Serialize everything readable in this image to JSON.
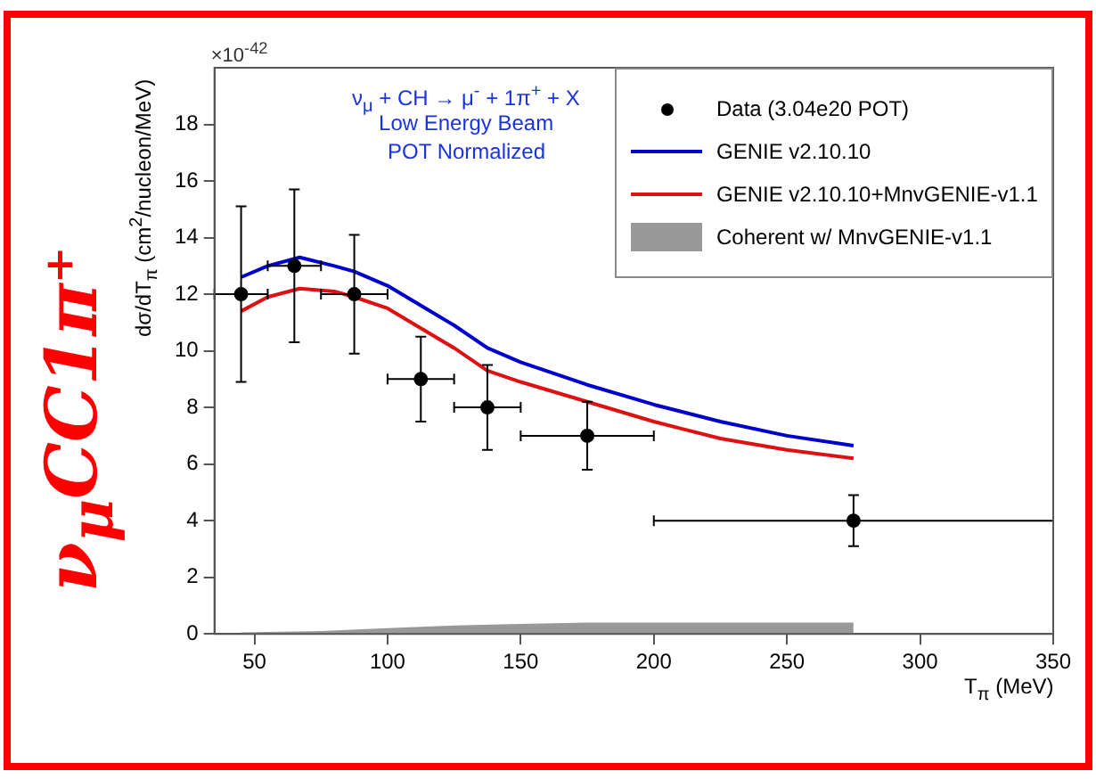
{
  "chart_data": {
    "type": "line",
    "title": "ν$_{μ}$CC1π⁺",
    "xlabel": "T$_{π}$ (MeV)",
    "ylabel": "dσ/dT$_{π}$ (cm$^{2}$/nucleon/MeV)",
    "annotations": [
      "×10$^{-42}$",
      "ν$_{μ}$ + CH → μ$^{-}$ + 1π$^{+}$ + X",
      "Low Energy Beam",
      "POT Normalized"
    ],
    "series": [
      {
        "name": "Data (3.04e20 POT)",
        "type": "scatter",
        "color": "#000000",
        "marker": "circle",
        "x": [
          45,
          65,
          87.5,
          112.5,
          137.5,
          175,
          275
        ],
        "values": [
          12,
          13,
          12,
          9,
          8,
          7,
          4
        ],
        "errors": [
          3.1,
          2.7,
          2.1,
          1.5,
          1.5,
          1.2,
          0.9
        ],
        "xerrors": [
          10,
          10,
          12.5,
          12.5,
          12.5,
          25,
          75
        ]
      },
      {
        "name": "GENIE v2.10.10",
        "type": "line",
        "color": "#0000cc",
        "x": [
          45,
          55,
          67,
          80,
          87.5,
          100,
          112.5,
          125,
          137.5,
          150,
          175,
          200,
          225,
          250,
          275
        ],
        "values": [
          12.6,
          13.0,
          13.3,
          13.0,
          12.8,
          12.3,
          11.6,
          10.9,
          10.1,
          9.6,
          8.8,
          8.1,
          7.5,
          7.0,
          6.65
        ]
      },
      {
        "name": "GENIE v2.10.10+MnvGENIE-v1.1",
        "type": "line",
        "color": "#dd1111",
        "x": [
          45,
          55,
          67,
          80,
          87.5,
          100,
          112.5,
          125,
          137.5,
          150,
          175,
          200,
          225,
          250,
          275
        ],
        "values": [
          11.4,
          11.9,
          12.2,
          12.1,
          11.9,
          11.5,
          10.8,
          10.1,
          9.3,
          8.9,
          8.2,
          7.5,
          6.9,
          6.5,
          6.2
        ]
      },
      {
        "name": "Coherent w/ MnvGENIE-v1.1",
        "type": "area",
        "color": "#999999",
        "x": [
          45,
          75,
          100,
          125,
          150,
          175,
          200,
          250,
          275
        ],
        "values": [
          0.05,
          0.1,
          0.2,
          0.3,
          0.35,
          0.4,
          0.4,
          0.4,
          0.4
        ]
      }
    ],
    "xlim": [
      35,
      350
    ],
    "xticks": [
      50,
      100,
      150,
      200,
      250,
      300,
      350
    ],
    "ylim": [
      0,
      20
    ],
    "yticks": [
      0,
      2,
      4,
      6,
      8,
      10,
      12,
      14,
      16,
      18
    ],
    "grid": false,
    "legend": "top right"
  }
}
